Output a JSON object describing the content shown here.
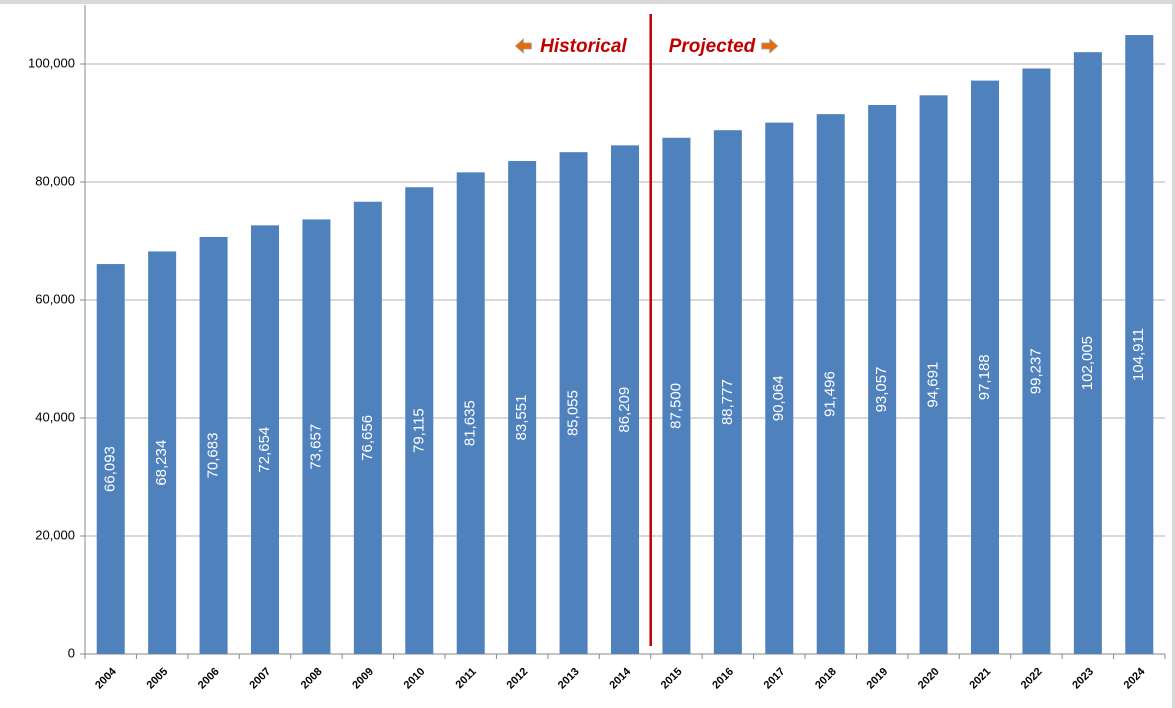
{
  "chart_data": {
    "type": "bar",
    "annotations": [
      "Historical",
      "Projected"
    ],
    "categories": [
      "2004",
      "2005",
      "2006",
      "2007",
      "2008",
      "2009",
      "2010",
      "2011",
      "2012",
      "2013",
      "2014",
      "2015",
      "2016",
      "2017",
      "2018",
      "2019",
      "2020",
      "2021",
      "2022",
      "2023",
      "2024"
    ],
    "values": [
      66093,
      68234,
      70683,
      72654,
      73657,
      76656,
      79115,
      81635,
      83551,
      85055,
      86209,
      87500,
      88777,
      90064,
      91496,
      93057,
      94691,
      97188,
      99237,
      102005,
      104911
    ],
    "value_labels": [
      "66,093",
      "68,234",
      "70,683",
      "72,654",
      "73,657",
      "76,656",
      "79,115",
      "81,635",
      "83,551",
      "85,055",
      "86,209",
      "87,500",
      "88,777",
      "90,064",
      "91,496",
      "93,057",
      "94,691",
      "97,188",
      "99,237",
      "102,005",
      "104,911"
    ],
    "color": "#4f81bd",
    "ylim": [
      0,
      110000
    ],
    "yticks": [
      0,
      {
        "value": 20000,
        "label": "20,000"
      },
      {
        "value": 40000,
        "label": "40,000"
      },
      {
        "value": 60000,
        "label": "60,000"
      },
      {
        "value": 80000,
        "label": "80,000"
      },
      {
        "value": 100000,
        "label": "100,000"
      }
    ],
    "grid": true
  }
}
